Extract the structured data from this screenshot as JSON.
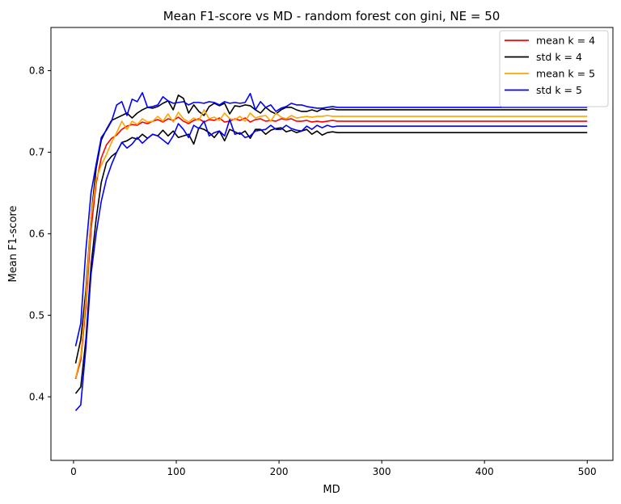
{
  "chart_data": {
    "type": "line",
    "title": "Mean F1-score vs MD - random forest con gini, NE = 50",
    "xlabel": "MD",
    "ylabel": "Mean F1-score",
    "xlim": [
      -22,
      525
    ],
    "ylim": [
      0.322,
      0.853
    ],
    "xticks": [
      0,
      100,
      200,
      300,
      400,
      500
    ],
    "yticks": [
      0.4,
      0.5,
      0.6,
      0.7,
      0.8
    ],
    "xtick_labels": [
      "0",
      "100",
      "200",
      "300",
      "400",
      "500"
    ],
    "ytick_labels": [
      "0.4",
      "0.5",
      "0.6",
      "0.7",
      "0.8"
    ],
    "legend_position": "upper right",
    "grid": false,
    "series": [
      {
        "name": "mean k = 4",
        "color": "#ff0000",
        "x": [
          2,
          7,
          12,
          17,
          22,
          27,
          32,
          37,
          42,
          47,
          52,
          57,
          62,
          67,
          72,
          77,
          82,
          87,
          92,
          97,
          102,
          107,
          112,
          117,
          122,
          127,
          132,
          137,
          142,
          147,
          152,
          157,
          162,
          167,
          172,
          177,
          182,
          187,
          192,
          197,
          202,
          207,
          212,
          217,
          222,
          227,
          232,
          237,
          242,
          247,
          252,
          257,
          262,
          500
        ],
        "y": [
          0.422,
          0.445,
          0.51,
          0.605,
          0.662,
          0.693,
          0.709,
          0.717,
          0.721,
          0.728,
          0.732,
          0.734,
          0.733,
          0.737,
          0.735,
          0.738,
          0.74,
          0.737,
          0.741,
          0.739,
          0.743,
          0.738,
          0.735,
          0.739,
          0.741,
          0.737,
          0.74,
          0.739,
          0.742,
          0.737,
          0.738,
          0.741,
          0.739,
          0.742,
          0.737,
          0.74,
          0.741,
          0.738,
          0.739,
          0.738,
          0.741,
          0.74,
          0.741,
          0.738,
          0.738,
          0.739,
          0.737,
          0.738,
          0.737,
          0.738,
          0.739,
          0.738,
          0.738,
          0.738
        ]
      },
      {
        "name": "std k = 4",
        "color": "#000000",
        "x": [
          2,
          7,
          12,
          17,
          22,
          27,
          32,
          37,
          42,
          47,
          52,
          57,
          62,
          67,
          72,
          77,
          82,
          87,
          92,
          97,
          102,
          107,
          112,
          117,
          122,
          127,
          132,
          137,
          142,
          147,
          152,
          157,
          162,
          167,
          172,
          177,
          182,
          187,
          192,
          197,
          202,
          207,
          212,
          217,
          222,
          227,
          232,
          237,
          242,
          247,
          252,
          257,
          262,
          500
        ],
        "y": [
          0.441,
          0.47,
          0.53,
          0.62,
          0.68,
          0.715,
          0.728,
          0.739,
          0.742,
          0.745,
          0.748,
          0.742,
          0.748,
          0.752,
          0.755,
          0.754,
          0.756,
          0.76,
          0.763,
          0.752,
          0.77,
          0.766,
          0.748,
          0.758,
          0.75,
          0.745,
          0.756,
          0.76,
          0.757,
          0.76,
          0.747,
          0.757,
          0.756,
          0.758,
          0.757,
          0.752,
          0.748,
          0.755,
          0.75,
          0.747,
          0.752,
          0.755,
          0.755,
          0.752,
          0.75,
          0.75,
          0.752,
          0.75,
          0.753,
          0.752,
          0.753,
          0.752,
          0.752,
          0.752
        ]
      },
      {
        "name": "std k = 4 (lower)",
        "color": "#000000",
        "x": [
          2,
          7,
          12,
          17,
          22,
          27,
          32,
          37,
          42,
          47,
          52,
          57,
          62,
          67,
          72,
          77,
          82,
          87,
          92,
          97,
          102,
          107,
          112,
          117,
          122,
          127,
          132,
          137,
          142,
          147,
          152,
          157,
          162,
          167,
          172,
          177,
          182,
          187,
          192,
          197,
          202,
          207,
          212,
          217,
          222,
          227,
          232,
          237,
          242,
          247,
          252,
          257,
          262,
          500
        ],
        "y": [
          0.404,
          0.412,
          0.47,
          0.56,
          0.618,
          0.663,
          0.687,
          0.695,
          0.7,
          0.712,
          0.714,
          0.718,
          0.716,
          0.722,
          0.717,
          0.722,
          0.72,
          0.727,
          0.72,
          0.726,
          0.718,
          0.72,
          0.722,
          0.71,
          0.73,
          0.728,
          0.724,
          0.718,
          0.726,
          0.714,
          0.728,
          0.725,
          0.722,
          0.726,
          0.717,
          0.728,
          0.728,
          0.722,
          0.727,
          0.729,
          0.73,
          0.725,
          0.727,
          0.724,
          0.726,
          0.728,
          0.722,
          0.726,
          0.721,
          0.724,
          0.725,
          0.724,
          0.724,
          0.724
        ]
      },
      {
        "name": "mean k = 5",
        "color": "#ffa500",
        "x": [
          2,
          7,
          12,
          17,
          22,
          27,
          32,
          37,
          42,
          47,
          52,
          57,
          62,
          67,
          72,
          77,
          82,
          87,
          92,
          97,
          102,
          107,
          112,
          117,
          122,
          127,
          132,
          137,
          142,
          147,
          152,
          157,
          162,
          167,
          172,
          177,
          182,
          187,
          192,
          197,
          202,
          207,
          212,
          217,
          222,
          227,
          232,
          237,
          242,
          247,
          252,
          257,
          262,
          500
        ],
        "y": [
          0.423,
          0.45,
          0.52,
          0.62,
          0.667,
          0.684,
          0.697,
          0.712,
          0.724,
          0.738,
          0.728,
          0.738,
          0.734,
          0.741,
          0.737,
          0.738,
          0.744,
          0.738,
          0.747,
          0.737,
          0.749,
          0.741,
          0.737,
          0.742,
          0.739,
          0.752,
          0.741,
          0.743,
          0.739,
          0.748,
          0.741,
          0.74,
          0.744,
          0.738,
          0.748,
          0.742,
          0.744,
          0.745,
          0.738,
          0.748,
          0.743,
          0.741,
          0.745,
          0.742,
          0.743,
          0.744,
          0.743,
          0.744,
          0.744,
          0.745,
          0.744,
          0.744,
          0.744,
          0.744
        ]
      },
      {
        "name": "std k = 5",
        "color": "#0000ff",
        "x": [
          2,
          7,
          12,
          17,
          22,
          27,
          32,
          37,
          42,
          47,
          52,
          57,
          62,
          67,
          72,
          77,
          82,
          87,
          92,
          97,
          102,
          107,
          112,
          117,
          122,
          127,
          132,
          137,
          142,
          147,
          152,
          157,
          162,
          167,
          172,
          177,
          182,
          187,
          192,
          197,
          202,
          207,
          212,
          217,
          222,
          227,
          232,
          237,
          242,
          247,
          252,
          257,
          262,
          500
        ],
        "y": [
          0.462,
          0.49,
          0.58,
          0.65,
          0.685,
          0.718,
          0.727,
          0.738,
          0.758,
          0.762,
          0.745,
          0.765,
          0.762,
          0.773,
          0.755,
          0.756,
          0.758,
          0.768,
          0.763,
          0.76,
          0.761,
          0.762,
          0.758,
          0.761,
          0.761,
          0.76,
          0.762,
          0.761,
          0.758,
          0.762,
          0.76,
          0.761,
          0.76,
          0.761,
          0.772,
          0.752,
          0.762,
          0.755,
          0.758,
          0.75,
          0.754,
          0.756,
          0.76,
          0.758,
          0.758,
          0.756,
          0.755,
          0.754,
          0.754,
          0.755,
          0.756,
          0.755,
          0.755,
          0.755
        ]
      },
      {
        "name": "std k = 5 (lower)",
        "color": "#0000ff",
        "x": [
          2,
          7,
          12,
          17,
          22,
          27,
          32,
          37,
          42,
          47,
          52,
          57,
          62,
          67,
          72,
          77,
          82,
          87,
          92,
          97,
          102,
          107,
          112,
          117,
          122,
          127,
          132,
          137,
          142,
          147,
          152,
          157,
          162,
          167,
          172,
          177,
          182,
          187,
          192,
          197,
          202,
          207,
          212,
          217,
          222,
          227,
          232,
          237,
          242,
          247,
          252,
          257,
          262,
          500
        ],
        "y": [
          0.383,
          0.39,
          0.46,
          0.55,
          0.6,
          0.64,
          0.667,
          0.685,
          0.7,
          0.712,
          0.705,
          0.71,
          0.718,
          0.711,
          0.717,
          0.722,
          0.72,
          0.715,
          0.71,
          0.72,
          0.735,
          0.728,
          0.718,
          0.733,
          0.729,
          0.738,
          0.72,
          0.724,
          0.726,
          0.72,
          0.74,
          0.722,
          0.724,
          0.718,
          0.72,
          0.726,
          0.727,
          0.728,
          0.733,
          0.728,
          0.728,
          0.733,
          0.729,
          0.727,
          0.726,
          0.732,
          0.728,
          0.733,
          0.73,
          0.733,
          0.731,
          0.732,
          0.732,
          0.732
        ]
      }
    ]
  }
}
